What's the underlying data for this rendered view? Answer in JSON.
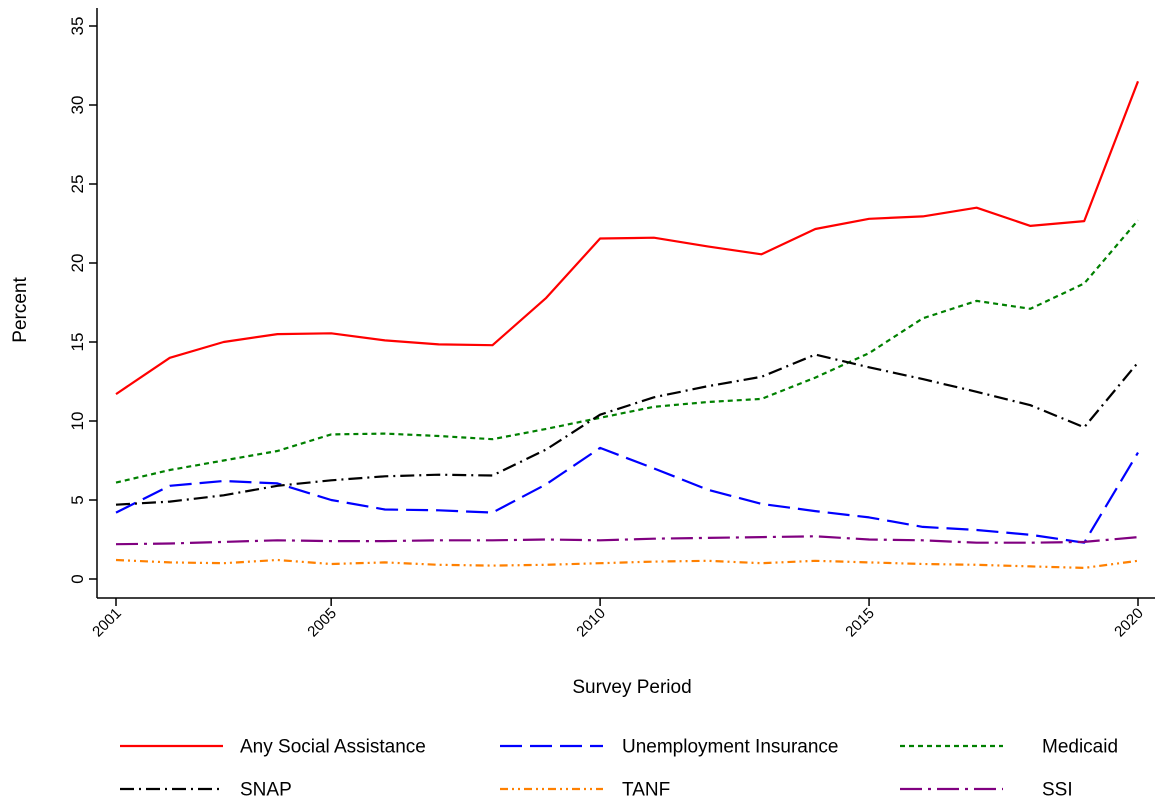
{
  "chart_data": {
    "type": "line",
    "title": "",
    "xlabel": "Survey Period",
    "ylabel": "Percent",
    "xlim": [
      2001,
      2020
    ],
    "ylim": [
      0,
      35
    ],
    "xticks": [
      2001,
      2005,
      2010,
      2015,
      2020
    ],
    "xtick_labels": [
      "2001",
      "2005",
      "2010",
      "2015",
      "2020"
    ],
    "yticks": [
      0,
      5,
      10,
      15,
      20,
      25,
      30,
      35
    ],
    "ytick_labels": [
      "0",
      "5",
      "10",
      "15",
      "20",
      "25",
      "30",
      "35"
    ],
    "grid": false,
    "legend_position": "bottom",
    "x": [
      2001,
      2002,
      2003,
      2004,
      2005,
      2006,
      2007,
      2008,
      2009,
      2010,
      2011,
      2012,
      2013,
      2014,
      2015,
      2016,
      2017,
      2018,
      2019,
      2020
    ],
    "series": [
      {
        "name": "Any Social Assistance",
        "color": "#ff0000",
        "dash": "solid",
        "values": [
          11.7,
          14.0,
          15.0,
          15.5,
          15.55,
          15.1,
          14.85,
          14.8,
          17.8,
          21.55,
          21.6,
          21.05,
          20.55,
          22.15,
          22.8,
          22.95,
          23.5,
          22.35,
          22.65,
          31.5
        ]
      },
      {
        "name": "Unemployment Insurance",
        "color": "#0000ff",
        "dash": "longdash",
        "values": [
          4.2,
          5.9,
          6.2,
          6.05,
          5.0,
          4.4,
          4.35,
          4.2,
          6.0,
          8.3,
          7.0,
          5.65,
          4.75,
          4.3,
          3.9,
          3.3,
          3.1,
          2.8,
          2.3,
          8.0
        ]
      },
      {
        "name": "Medicaid",
        "color": "#008000",
        "dash": "dot",
        "values": [
          6.1,
          6.9,
          7.5,
          8.1,
          9.15,
          9.2,
          9.05,
          8.85,
          9.5,
          10.2,
          10.9,
          11.2,
          11.4,
          12.75,
          14.3,
          16.5,
          17.6,
          17.1,
          18.7,
          22.7
        ]
      },
      {
        "name": "SNAP",
        "color": "#000000",
        "dash": "dashdot",
        "values": [
          4.7,
          4.9,
          5.3,
          5.9,
          6.25,
          6.5,
          6.6,
          6.55,
          8.2,
          10.4,
          11.5,
          12.2,
          12.8,
          14.2,
          13.4,
          12.65,
          11.85,
          11.0,
          9.6,
          13.7
        ]
      },
      {
        "name": "TANF",
        "color": "#ff8000",
        "dash": "dashdotdot",
        "values": [
          1.2,
          1.05,
          1.0,
          1.2,
          0.95,
          1.05,
          0.9,
          0.85,
          0.9,
          1.0,
          1.1,
          1.15,
          1.0,
          1.15,
          1.05,
          0.95,
          0.9,
          0.8,
          0.7,
          1.15
        ]
      },
      {
        "name": "SSI",
        "color": "#800080",
        "dash": "longdashdot",
        "values": [
          2.2,
          2.25,
          2.35,
          2.45,
          2.4,
          2.4,
          2.45,
          2.45,
          2.5,
          2.45,
          2.55,
          2.6,
          2.65,
          2.7,
          2.5,
          2.45,
          2.3,
          2.3,
          2.35,
          2.65
        ]
      }
    ]
  }
}
